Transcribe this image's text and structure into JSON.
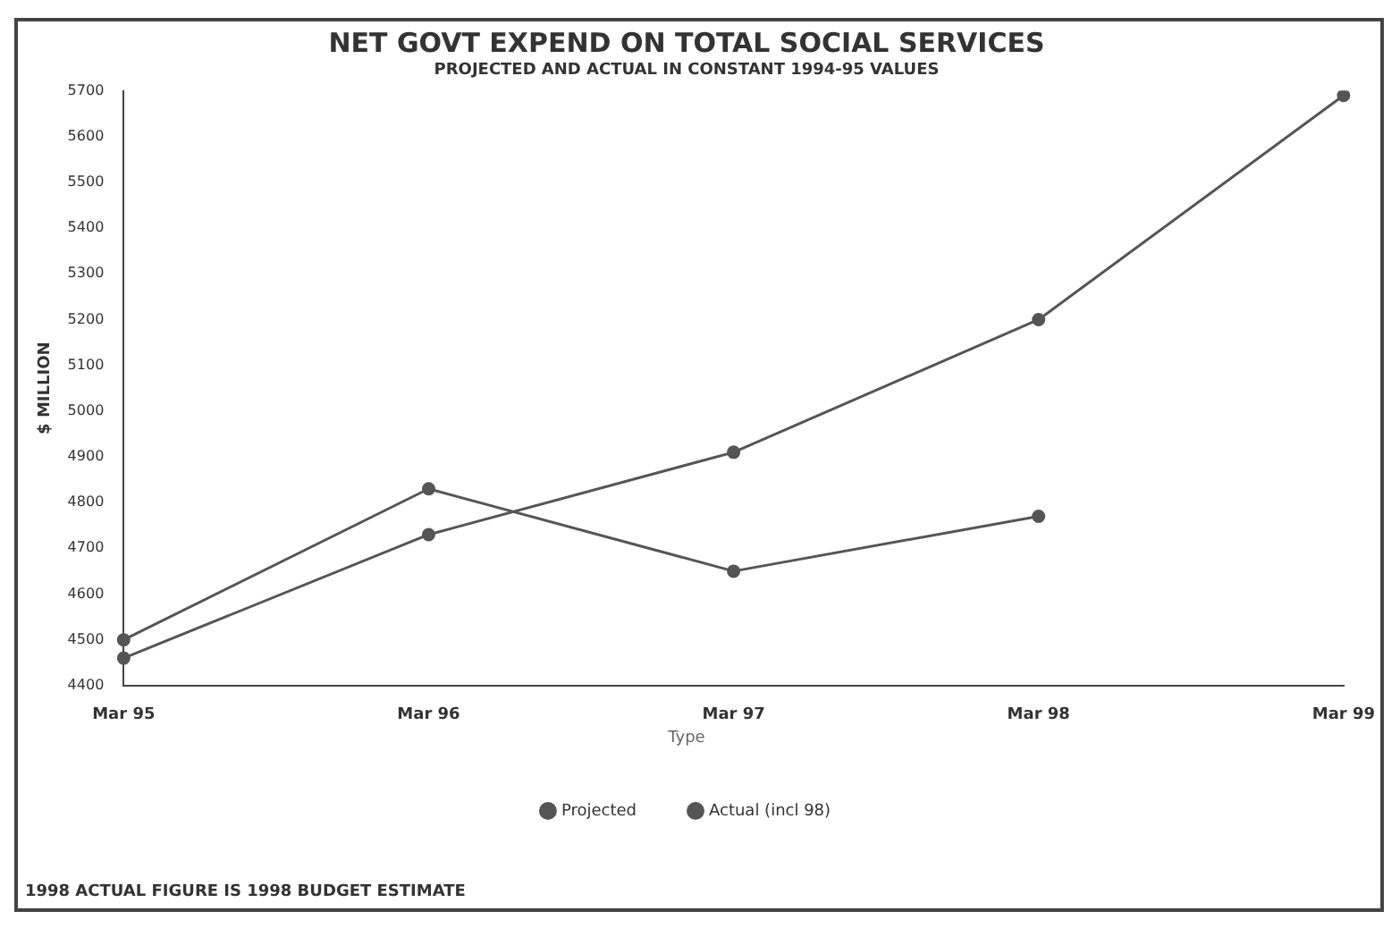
{
  "chart_data": {
    "type": "line",
    "title": "NET GOVT EXPEND ON TOTAL SOCIAL SERVICES",
    "subtitle": "PROJECTED AND ACTUAL IN CONSTANT 1994-95 VALUES",
    "ylabel": "$ MILLION",
    "legend_title": "Type",
    "categories": [
      "Mar 95",
      "Mar 96",
      "Mar 97",
      "Mar 98",
      "Mar 99"
    ],
    "series": [
      {
        "name": "Projected",
        "color": "#555555",
        "values": [
          4460,
          4730,
          4910,
          5200,
          5690
        ]
      },
      {
        "name": "Actual (incl 98)",
        "color": "#555555",
        "values": [
          4500,
          4830,
          4650,
          4770,
          null
        ]
      }
    ],
    "ylim": [
      4400,
      5700
    ],
    "yticks": [
      4400,
      4500,
      4600,
      4700,
      4800,
      4900,
      5000,
      5100,
      5200,
      5300,
      5400,
      5500,
      5600,
      5700
    ],
    "grid": false,
    "legend": "bottom",
    "marker": "circle",
    "line_style": "solid",
    "annotations": [
      "1998 ACTUAL FIGURE IS 1998 BUDGET ESTIMATE"
    ]
  }
}
